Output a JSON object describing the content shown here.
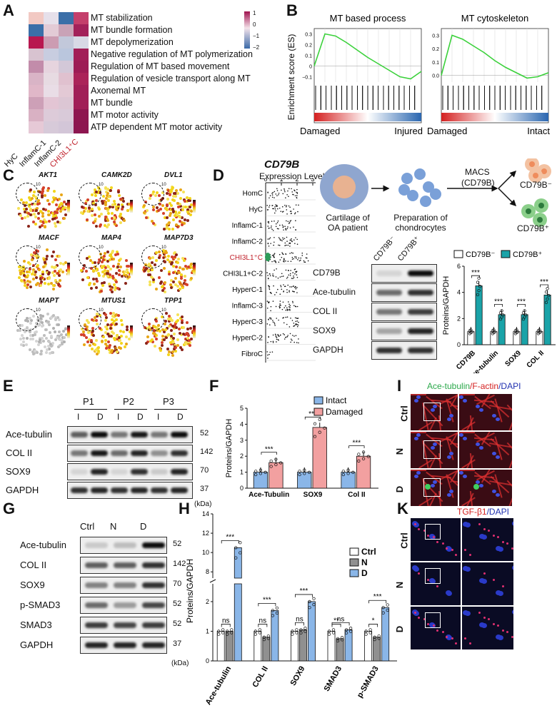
{
  "panel_letters": {
    "A": "A",
    "B": "B",
    "C": "C",
    "D": "D",
    "E": "E",
    "F": "F",
    "G": "G",
    "H": "H",
    "I": "I",
    "K": "K"
  },
  "panelA": {
    "rows": [
      "MT stabilization",
      "MT bundle formation",
      "MT depolymerization",
      "Negative regulation of MT polymerization",
      "Regulation of MT based movement",
      "Regulation of vesicle transport along MT",
      "Axonemal MT",
      "MT bundle",
      "MT motor activity",
      "ATP dependent MT motor activity"
    ],
    "cols": [
      "HyC",
      "InflamC-1",
      "InflamC-2",
      "CHI3L1⁺C"
    ],
    "highlight_col_color": "#c0202a",
    "scale_ticks": [
      "1",
      "0",
      "−1",
      "−2"
    ],
    "colors": [
      [
        "#f2c9c3",
        "#e6e0ea",
        "#3b6fa8",
        "#c43f6b"
      ],
      [
        "#3b6fa8",
        "#e3cbd6",
        "#c9a3b7",
        "#a3215a"
      ],
      [
        "#b8174f",
        "#cc9cb2",
        "#c2c8da",
        "#d8d9e5"
      ],
      [
        "#d8c3d0",
        "#c8cde0",
        "#bac6dd",
        "#a21e57"
      ],
      [
        "#c28caa",
        "#e6d4de",
        "#d3c8d8",
        "#9d1c55"
      ],
      [
        "#d9b4c6",
        "#e7dbe2",
        "#e0c1cf",
        "#ab2359"
      ],
      [
        "#e0b7c8",
        "#e9dde6",
        "#e3c9d5",
        "#a11e57"
      ],
      [
        "#cda0b7",
        "#e3c5d4",
        "#dcc6d4",
        "#a11e57"
      ],
      [
        "#d9b1c3",
        "#ddcbd9",
        "#d9cad9",
        "#8e1750"
      ],
      [
        "#e6c9d6",
        "#d7cad9",
        "#d3c6d8",
        "#8d1650"
      ]
    ]
  },
  "panelB": {
    "ylabel": "Enrichment score (ES)",
    "plots": [
      {
        "title": "MT based process",
        "left_label": "Damaged",
        "right_label": "Injured",
        "yticks": [
          "0.3",
          "0.2",
          "0.1",
          "0",
          "−0.1"
        ]
      },
      {
        "title": "MT cytoskeleton",
        "left_label": "Damaged",
        "right_label": "Intact",
        "yticks": [
          "0.3",
          "0.2",
          "0.1",
          "0.0"
        ]
      }
    ]
  },
  "panelC": {
    "genes": [
      "AKT1",
      "CAMK2D",
      "DVL1",
      "MACF",
      "MAP4",
      "MAP7D3",
      "MAPT",
      "MTUS1",
      "TPP1"
    ],
    "cluster_label": "10"
  },
  "panelD": {
    "gene": "CD79B",
    "expr_label": "Expression Level",
    "axis_ticks": [
      "0",
      "1",
      "2",
      "3"
    ],
    "clusters": [
      "HomC",
      "HyC",
      "InflamC-1",
      "InflamC-2",
      "CHI3L1⁺C",
      "CHI3L1+C-2",
      "HyperC-1",
      "InflamC-3",
      "HyperC-3",
      "HyperC-2",
      "FibroC"
    ],
    "highlight": "CHI3L1⁺C",
    "schematic": {
      "cartilage": "Cartilage of OA patient",
      "prep": "Preparation of chondrocytes",
      "macs": "MACS",
      "macs2": "(CD79B)",
      "neg": "CD79B⁻",
      "pos": "CD79B⁺"
    },
    "blot_cols": [
      "CD79B⁻",
      "CD79B⁺"
    ],
    "blot_rows": [
      "CD79B",
      "Ace-tubulin",
      "COL II",
      "SOX9",
      "GAPDH"
    ],
    "bar": {
      "legend": [
        "CD79B⁻",
        "CD79B⁺"
      ],
      "ylabel": "Proteins/GAPDH",
      "yticks": [
        "0",
        "2",
        "4",
        "6"
      ],
      "categories": [
        "CD79B",
        "Ace-tubulin",
        "SOX9",
        "COL II"
      ],
      "sig": [
        "***",
        "***",
        "***",
        "***"
      ]
    }
  },
  "panelE": {
    "groups": [
      "P1",
      "P2",
      "P3"
    ],
    "lanes": [
      "I",
      "D",
      "I",
      "D",
      "I",
      "D"
    ],
    "rows": [
      "Ace-tubulin",
      "COL II",
      "SOX9",
      "GAPDH"
    ],
    "kda": [
      "52",
      "142",
      "70",
      "37"
    ],
    "kda_unit": "(kDa)"
  },
  "panelF": {
    "legend": [
      "Intact",
      "Damaged"
    ],
    "ylabel": "Proteins/GAPDH",
    "yticks": [
      "0",
      "1",
      "2",
      "3",
      "4",
      "5"
    ],
    "categories": [
      "Ace-Tubulin",
      "SOX9",
      "Col II"
    ],
    "sig": [
      "***",
      "***",
      "***"
    ]
  },
  "panelG": {
    "lanes": [
      "Ctrl",
      "N",
      "D"
    ],
    "rows": [
      "Ace-tubulin",
      "COL II",
      "SOX9",
      "p-SMAD3",
      "SMAD3",
      "GAPDH"
    ],
    "kda": [
      "52",
      "142",
      "70",
      "52",
      "52",
      "37"
    ],
    "kda_unit": "(kDa)"
  },
  "panelH": {
    "legend": [
      "Ctrl",
      "N",
      "D"
    ],
    "ylabel": "Proteins/GAPDH",
    "yticks_low": [
      "0",
      "1",
      "2"
    ],
    "yticks_high": [
      "8",
      "10",
      "12",
      "14"
    ],
    "categories": [
      "Ace-tubulin",
      "COL II",
      "SOX9",
      "SMAD3",
      "p-SMAD3"
    ],
    "sig": [
      {
        "top": "***",
        "low": "ns"
      },
      {
        "top": "***",
        "low": "ns"
      },
      {
        "top": "***",
        "low": "ns"
      },
      {
        "top": "ns",
        "low": "**"
      },
      {
        "top": "***",
        "low": "*"
      }
    ]
  },
  "panelI": {
    "title_parts": [
      "Ace-tubulin",
      "/F-actin",
      "/DAPI"
    ],
    "title_colors": [
      "#2aa84a",
      "#d42020",
      "#2030b0"
    ],
    "rows": [
      "Ctrl",
      "N",
      "D"
    ]
  },
  "panelK": {
    "title_parts": [
      "TGF-β1",
      "/DAPI"
    ],
    "title_colors": [
      "#d42020",
      "#2030b0"
    ],
    "rows": [
      "Ctrl",
      "N",
      "D"
    ]
  },
  "chart_data": [
    {
      "type": "heatmap",
      "rows": [
        "MT stabilization",
        "MT bundle formation",
        "MT depolymerization",
        "Negative regulation of MT polymerization",
        "Regulation of MT based movement",
        "Regulation of vesicle transport along MT",
        "Axonemal MT",
        "MT bundle",
        "MT motor activity",
        "ATP dependent MT motor activity"
      ],
      "cols": [
        "HyC",
        "InflamC-1",
        "InflamC-2",
        "CHI3L1⁺C"
      ],
      "scale": [
        -2,
        1
      ]
    },
    {
      "type": "line",
      "title": "MT based process",
      "ylabel": "Enrichment score (ES)",
      "x": [
        0,
        1,
        2,
        3,
        4,
        5,
        6,
        7,
        8,
        9,
        10
      ],
      "values": [
        0.0,
        0.3,
        0.28,
        0.22,
        0.15,
        0.08,
        0.02,
        -0.04,
        -0.1,
        -0.12,
        -0.05
      ],
      "ylim": [
        -0.15,
        0.35
      ]
    },
    {
      "type": "line",
      "title": "MT cytoskeleton",
      "ylabel": "Enrichment score (ES)",
      "x": [
        0,
        1,
        2,
        3,
        4,
        5,
        6,
        7,
        8,
        9,
        10
      ],
      "values": [
        0.0,
        0.3,
        0.27,
        0.22,
        0.17,
        0.11,
        0.06,
        0.02,
        -0.02,
        -0.01,
        0.02
      ],
      "ylim": [
        -0.05,
        0.35
      ]
    },
    {
      "type": "bar",
      "ylabel": "Proteins/GAPDH",
      "categories": [
        "CD79B",
        "Ace-tubulin",
        "SOX9",
        "COL II"
      ],
      "series": [
        {
          "name": "CD79B⁻",
          "values": [
            1.0,
            1.0,
            1.0,
            1.0
          ]
        },
        {
          "name": "CD79B⁺",
          "values": [
            4.5,
            2.3,
            2.3,
            3.8
          ]
        }
      ],
      "ylim": [
        0,
        6
      ]
    },
    {
      "type": "bar",
      "ylabel": "Proteins/GAPDH",
      "categories": [
        "Ace-Tubulin",
        "SOX9",
        "Col II"
      ],
      "series": [
        {
          "name": "Intact",
          "values": [
            1.0,
            1.0,
            1.0
          ]
        },
        {
          "name": "Damaged",
          "values": [
            1.6,
            3.8,
            2.0
          ]
        }
      ],
      "ylim": [
        0,
        5
      ]
    },
    {
      "type": "bar",
      "ylabel": "Proteins/GAPDH",
      "categories": [
        "Ace-tubulin",
        "COL II",
        "SOX9",
        "SMAD3",
        "p-SMAD3"
      ],
      "series": [
        {
          "name": "Ctrl",
          "values": [
            1.0,
            1.0,
            1.0,
            1.0,
            1.0
          ]
        },
        {
          "name": "N",
          "values": [
            1.0,
            0.8,
            1.05,
            0.75,
            0.8
          ]
        },
        {
          "name": "D",
          "values": [
            10.5,
            1.7,
            2.0,
            1.05,
            1.8
          ]
        }
      ],
      "ylim": [
        0,
        14
      ]
    }
  ]
}
